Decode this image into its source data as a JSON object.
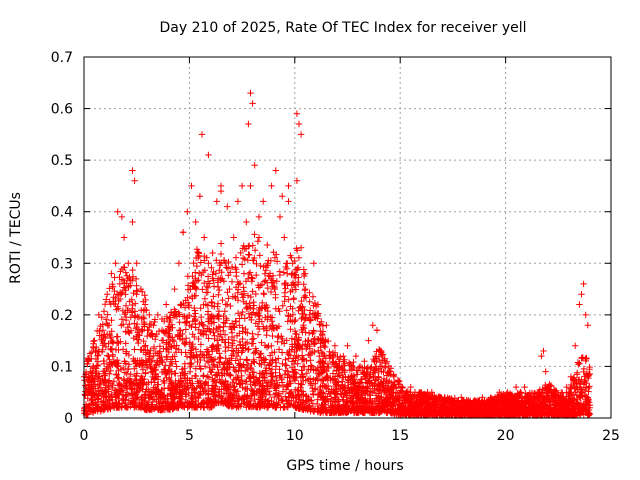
{
  "chart_data": {
    "type": "scatter",
    "title": "Day 210 of 2025, Rate Of TEC Index for receiver yell",
    "xlabel": "GPS time / hours",
    "ylabel": "ROTI / TECUs",
    "xlim": [
      0,
      25
    ],
    "ylim": [
      0,
      0.7
    ],
    "x_ticks": [
      0,
      5,
      10,
      15,
      20,
      25
    ],
    "y_ticks": [
      0,
      0.1,
      0.2,
      0.3,
      0.4,
      0.5,
      0.6,
      0.7
    ],
    "x_tick_labels": [
      "0",
      "5",
      "10",
      "15",
      "20",
      "25"
    ],
    "y_tick_labels": [
      "0",
      "0.1",
      "0.2",
      "0.3",
      "0.4",
      "0.5",
      "0.6",
      "0.7"
    ],
    "grid": true,
    "marker": "plus",
    "series": [
      {
        "name": "ROTI",
        "color": "#ff0000",
        "x": [
          0.1,
          0.3,
          0.5,
          0.7,
          0.9,
          1.1,
          1.3,
          1.5,
          1.7,
          1.9,
          2.1,
          2.3,
          2.5,
          2.7,
          2.9,
          3.1,
          3.3,
          3.5,
          3.7,
          3.9,
          4.1,
          4.3,
          4.5,
          4.7,
          4.9,
          5.1,
          5.3,
          5.5,
          5.7,
          5.9,
          6.1,
          6.3,
          6.5,
          6.7,
          6.9,
          7.1,
          7.3,
          7.5,
          7.7,
          7.9,
          8.1,
          8.3,
          8.5,
          8.7,
          8.9,
          9.1,
          9.3,
          9.5,
          9.7,
          9.9,
          10.1,
          10.3,
          10.5,
          10.7,
          10.9,
          11.1,
          11.3,
          11.5,
          11.7,
          11.9,
          12.1,
          12.3,
          12.5,
          12.7,
          12.9,
          13.1,
          13.3,
          13.5,
          13.7,
          13.9,
          14.1,
          14.3,
          14.5,
          14.7,
          14.9,
          15.1,
          15.3,
          15.5,
          15.7,
          15.9,
          16.1,
          16.3,
          16.5,
          16.7,
          16.9,
          17.1,
          17.3,
          17.5,
          17.7,
          17.9,
          18.1,
          18.3,
          18.5,
          18.7,
          18.9,
          19.1,
          19.3,
          19.5,
          19.7,
          19.9,
          20.1,
          20.3,
          20.5,
          20.7,
          20.9,
          21.1,
          21.3,
          21.5,
          21.7,
          21.9,
          22.1,
          22.3,
          22.5,
          22.7,
          22.9,
          23.1,
          23.3,
          23.5,
          23.7,
          23.9,
          2.3,
          2.4,
          5.6,
          5.9,
          7.8,
          7.9,
          8.0,
          9.7,
          10.1,
          10.2,
          10.3,
          23.6,
          23.8,
          1.6,
          1.8,
          4.7,
          6.5,
          6.8,
          8.3,
          9.4,
          21.8,
          13.9
        ],
        "y": [
          0.06,
          0.09,
          0.15,
          0.2,
          0.17,
          0.24,
          0.28,
          0.3,
          0.26,
          0.35,
          0.3,
          0.38,
          0.3,
          0.25,
          0.22,
          0.2,
          0.18,
          0.2,
          0.17,
          0.22,
          0.19,
          0.25,
          0.3,
          0.36,
          0.4,
          0.45,
          0.38,
          0.43,
          0.35,
          0.3,
          0.32,
          0.42,
          0.45,
          0.3,
          0.25,
          0.35,
          0.42,
          0.45,
          0.38,
          0.45,
          0.49,
          0.35,
          0.42,
          0.3,
          0.45,
          0.48,
          0.39,
          0.35,
          0.42,
          0.3,
          0.46,
          0.33,
          0.25,
          0.2,
          0.3,
          0.22,
          0.15,
          0.18,
          0.12,
          0.14,
          0.1,
          0.12,
          0.14,
          0.1,
          0.12,
          0.1,
          0.11,
          0.15,
          0.18,
          0.17,
          0.13,
          0.1,
          0.09,
          0.08,
          0.07,
          0.06,
          0.05,
          0.06,
          0.05,
          0.05,
          0.04,
          0.05,
          0.05,
          0.04,
          0.04,
          0.04,
          0.03,
          0.03,
          0.03,
          0.04,
          0.03,
          0.03,
          0.03,
          0.03,
          0.04,
          0.03,
          0.04,
          0.04,
          0.05,
          0.04,
          0.05,
          0.04,
          0.06,
          0.05,
          0.06,
          0.04,
          0.03,
          0.04,
          0.12,
          0.09,
          0.05,
          0.04,
          0.03,
          0.04,
          0.06,
          0.08,
          0.14,
          0.22,
          0.26,
          0.18,
          0.48,
          0.46,
          0.55,
          0.51,
          0.57,
          0.63,
          0.61,
          0.45,
          0.59,
          0.57,
          0.55,
          0.24,
          0.2,
          0.4,
          0.39,
          0.36,
          0.44,
          0.41,
          0.39,
          0.43,
          0.13,
          0.17
        ],
        "band": {
          "x": [
            0,
            0.5,
            1,
            1.5,
            2,
            2.5,
            3,
            3.5,
            4,
            4.5,
            5,
            5.5,
            6,
            6.5,
            7,
            7.5,
            8,
            8.5,
            9,
            9.5,
            10,
            10.5,
            11,
            11.5,
            12,
            12.5,
            13,
            13.5,
            14,
            14.5,
            15,
            15.5,
            16,
            16.5,
            17,
            17.5,
            18,
            18.5,
            19,
            19.5,
            20,
            20.5,
            21,
            21.5,
            22,
            22.5,
            23,
            23.5,
            24
          ],
          "upper": [
            0.09,
            0.16,
            0.23,
            0.28,
            0.3,
            0.3,
            0.22,
            0.19,
            0.2,
            0.24,
            0.3,
            0.34,
            0.3,
            0.34,
            0.3,
            0.34,
            0.36,
            0.34,
            0.34,
            0.3,
            0.34,
            0.28,
            0.22,
            0.16,
            0.12,
            0.12,
            0.1,
            0.1,
            0.14,
            0.1,
            0.07,
            0.05,
            0.05,
            0.045,
            0.04,
            0.04,
            0.035,
            0.035,
            0.035,
            0.04,
            0.05,
            0.05,
            0.05,
            0.05,
            0.07,
            0.05,
            0.05,
            0.12,
            0.12
          ],
          "lower": [
            0.005,
            0.01,
            0.015,
            0.02,
            0.02,
            0.02,
            0.015,
            0.015,
            0.015,
            0.02,
            0.02,
            0.02,
            0.02,
            0.03,
            0.02,
            0.02,
            0.02,
            0.02,
            0.02,
            0.02,
            0.02,
            0.015,
            0.01,
            0.01,
            0.01,
            0.01,
            0.01,
            0.01,
            0.01,
            0.01,
            0.005,
            0.005,
            0.005,
            0.005,
            0.005,
            0.005,
            0.005,
            0.005,
            0.005,
            0.005,
            0.005,
            0.005,
            0.005,
            0.005,
            0.005,
            0.005,
            0.005,
            0.005,
            0.005
          ]
        }
      }
    ]
  }
}
